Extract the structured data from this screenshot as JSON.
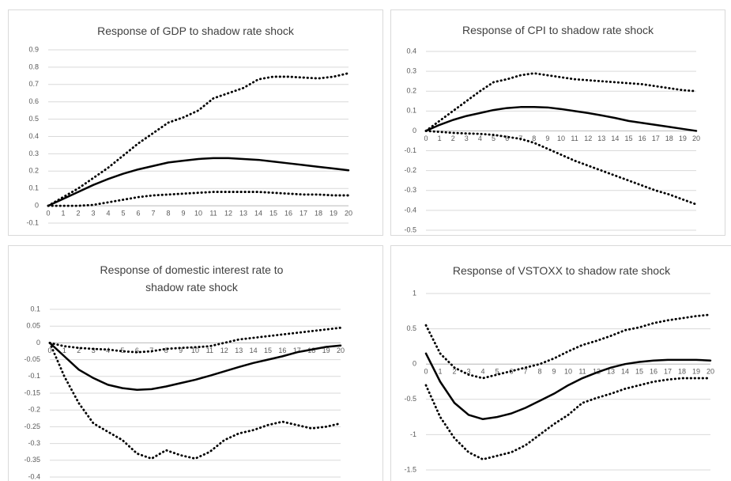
{
  "chart_data": [
    {
      "type": "line",
      "title": "Response of GDP to shadow rate shock",
      "x": [
        0,
        1,
        2,
        3,
        4,
        5,
        6,
        7,
        8,
        9,
        10,
        11,
        12,
        13,
        14,
        15,
        16,
        17,
        18,
        19,
        20
      ],
      "xlim": [
        0,
        20
      ],
      "ylim": [
        -0.1,
        0.9
      ],
      "yticks": [
        0.9,
        0.8,
        0.7,
        0.6,
        0.5,
        0.4,
        0.3,
        0.2,
        0.1,
        0,
        -0.1
      ],
      "grid": true,
      "series": [
        {
          "color": "#000000",
          "style": "solid",
          "values": [
            0,
            0.04,
            0.08,
            0.12,
            0.155,
            0.185,
            0.21,
            0.23,
            0.25,
            0.26,
            0.27,
            0.275,
            0.275,
            0.27,
            0.265,
            0.255,
            0.245,
            0.235,
            0.225,
            0.215,
            0.205
          ]
        },
        {
          "color": "#000000",
          "style": "dotted",
          "values": [
            0,
            0.05,
            0.1,
            0.16,
            0.22,
            0.29,
            0.36,
            0.42,
            0.48,
            0.51,
            0.55,
            0.62,
            0.65,
            0.68,
            0.73,
            0.745,
            0.745,
            0.74,
            0.735,
            0.745,
            0.765
          ]
        },
        {
          "color": "#000000",
          "style": "dotted",
          "values": [
            0,
            0,
            0,
            0.005,
            0.02,
            0.035,
            0.05,
            0.06,
            0.065,
            0.07,
            0.075,
            0.08,
            0.08,
            0.08,
            0.08,
            0.075,
            0.07,
            0.065,
            0.065,
            0.06,
            0.06
          ]
        }
      ]
    },
    {
      "type": "line",
      "title": "Response of CPI to shadow rate shock",
      "x": [
        0,
        1,
        2,
        3,
        4,
        5,
        6,
        7,
        8,
        9,
        10,
        11,
        12,
        13,
        14,
        15,
        16,
        17,
        18,
        19,
        20
      ],
      "xlim": [
        0,
        20
      ],
      "ylim": [
        -0.5,
        0.4
      ],
      "yticks": [
        0.4,
        0.3,
        0.2,
        0.1,
        0,
        -0.1,
        -0.2,
        -0.3,
        -0.4,
        -0.5
      ],
      "grid": true,
      "series": [
        {
          "color": "#000000",
          "style": "solid",
          "values": [
            0,
            0.03,
            0.055,
            0.075,
            0.09,
            0.105,
            0.115,
            0.12,
            0.12,
            0.118,
            0.11,
            0.1,
            0.09,
            0.078,
            0.065,
            0.05,
            0.04,
            0.03,
            0.02,
            0.01,
            0
          ]
        },
        {
          "color": "#000000",
          "style": "dotted",
          "values": [
            0,
            0.05,
            0.1,
            0.15,
            0.2,
            0.245,
            0.26,
            0.28,
            0.29,
            0.28,
            0.27,
            0.26,
            0.255,
            0.25,
            0.245,
            0.24,
            0.235,
            0.225,
            0.215,
            0.205,
            0.2
          ]
        },
        {
          "color": "#000000",
          "style": "dotted",
          "values": [
            0,
            -0.005,
            -0.01,
            -0.013,
            -0.015,
            -0.02,
            -0.03,
            -0.04,
            -0.06,
            -0.09,
            -0.12,
            -0.15,
            -0.175,
            -0.2,
            -0.225,
            -0.25,
            -0.275,
            -0.3,
            -0.32,
            -0.345,
            -0.37
          ]
        }
      ]
    },
    {
      "type": "line",
      "title": "Response of domestic interest rate to shadow rate shock",
      "x": [
        0,
        1,
        2,
        3,
        4,
        5,
        6,
        7,
        8,
        9,
        10,
        11,
        12,
        13,
        14,
        15,
        16,
        17,
        18,
        19,
        20
      ],
      "xlim": [
        0,
        20
      ],
      "ylim": [
        -0.4,
        0.1
      ],
      "yticks": [
        0.1,
        0.05,
        0,
        -0.05,
        -0.1,
        -0.15,
        -0.2,
        -0.25,
        -0.3,
        -0.35,
        -0.4
      ],
      "grid": true,
      "series": [
        {
          "color": "#000000",
          "style": "solid",
          "values": [
            0,
            -0.04,
            -0.08,
            -0.105,
            -0.125,
            -0.135,
            -0.14,
            -0.138,
            -0.13,
            -0.12,
            -0.11,
            -0.098,
            -0.085,
            -0.072,
            -0.06,
            -0.05,
            -0.04,
            -0.028,
            -0.02,
            -0.012,
            -0.008
          ]
        },
        {
          "color": "#000000",
          "style": "dotted",
          "values": [
            0,
            -0.01,
            -0.015,
            -0.018,
            -0.02,
            -0.025,
            -0.028,
            -0.025,
            -0.018,
            -0.015,
            -0.013,
            -0.01,
            0,
            0.01,
            0.015,
            0.02,
            0.025,
            0.03,
            0.035,
            0.04,
            0.045
          ]
        },
        {
          "color": "#000000",
          "style": "dotted",
          "values": [
            0,
            -0.1,
            -0.18,
            -0.24,
            -0.265,
            -0.29,
            -0.33,
            -0.345,
            -0.32,
            -0.335,
            -0.345,
            -0.325,
            -0.29,
            -0.27,
            -0.26,
            -0.245,
            -0.235,
            -0.245,
            -0.255,
            -0.25,
            -0.24
          ]
        }
      ]
    },
    {
      "type": "line",
      "title": "Response of VSTOXX to shadow rate shock",
      "x": [
        0,
        1,
        2,
        3,
        4,
        5,
        6,
        7,
        8,
        9,
        10,
        11,
        12,
        13,
        14,
        15,
        16,
        17,
        18,
        19,
        20
      ],
      "xlim": [
        0,
        20
      ],
      "ylim": [
        -1.5,
        1
      ],
      "yticks": [
        1,
        0.5,
        0,
        -0.5,
        -1,
        -1.5
      ],
      "grid": true,
      "series": [
        {
          "color": "#000000",
          "style": "solid",
          "values": [
            0.15,
            -0.25,
            -0.55,
            -0.72,
            -0.78,
            -0.75,
            -0.7,
            -0.62,
            -0.52,
            -0.42,
            -0.3,
            -0.2,
            -0.12,
            -0.05,
            0,
            0.03,
            0.05,
            0.06,
            0.06,
            0.06,
            0.05
          ]
        },
        {
          "color": "#000000",
          "style": "dotted",
          "values": [
            0.55,
            0.15,
            -0.05,
            -0.15,
            -0.2,
            -0.15,
            -0.1,
            -0.05,
            0,
            0.08,
            0.18,
            0.27,
            0.33,
            0.4,
            0.48,
            0.52,
            0.58,
            0.62,
            0.65,
            0.68,
            0.7
          ]
        },
        {
          "color": "#000000",
          "style": "dotted",
          "values": [
            -0.3,
            -0.75,
            -1.05,
            -1.25,
            -1.35,
            -1.3,
            -1.25,
            -1.15,
            -1,
            -0.85,
            -0.72,
            -0.55,
            -0.48,
            -0.42,
            -0.35,
            -0.3,
            -0.25,
            -0.22,
            -0.2,
            -0.2,
            -0.2
          ]
        }
      ]
    }
  ]
}
